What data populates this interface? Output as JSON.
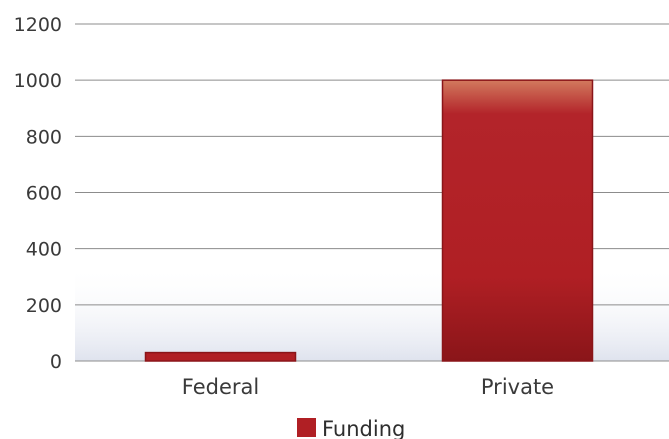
{
  "chart_data": {
    "type": "bar",
    "categories": [
      "Federal",
      "Private"
    ],
    "series": [
      {
        "name": "Funding",
        "values": [
          30,
          1000
        ]
      }
    ],
    "ylim": [
      0,
      1200
    ],
    "yticks": [
      0,
      200,
      400,
      600,
      800,
      1000,
      1200
    ],
    "grid": true,
    "legend": "bottom-center",
    "colors": {
      "bar": "#b01f24",
      "bar_dark": "#8a1519",
      "bar_light": "#d9775a",
      "legend": "#b01f24",
      "grid": "#8c8c8c",
      "band": "#e6e9f2"
    }
  }
}
